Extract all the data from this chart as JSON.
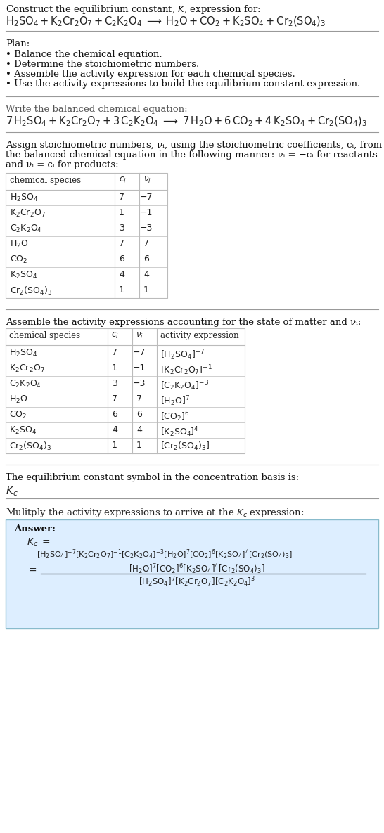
{
  "title_line1": "Construct the equilibrium constant, $K$, expression for:",
  "title_line2_plain": "H₂SO₄ + K₂Cr₂O₇ + C₂K₂O₄  ⟶  H₂O + CO₂ + K₂SO₄ + Cr₂(SO₄)₃",
  "plan_header": "Plan:",
  "plan_items": [
    "• Balance the chemical equation.",
    "• Determine the stoichiometric numbers.",
    "• Assemble the activity expression for each chemical species.",
    "• Use the activity expressions to build the equilibrium constant expression."
  ],
  "balanced_header": "Write the balanced chemical equation:",
  "stoich_intro_lines": [
    "Assign stoichiometric numbers, νᵢ, using the stoichiometric coefficients, cᵢ, from",
    "the balanced chemical equation in the following manner: νᵢ = −cᵢ for reactants",
    "and νᵢ = cᵢ for products:"
  ],
  "table1_col_headers": [
    "chemical species",
    "ci",
    "νi"
  ],
  "table1_rows": [
    [
      "H₂SO₄",
      "7",
      "−7"
    ],
    [
      "K₂Cr₂O₇",
      "1",
      "−1"
    ],
    [
      "C₂K₂O₄",
      "3",
      "−3"
    ],
    [
      "H₂O",
      "7",
      "7"
    ],
    [
      "CO₂",
      "6",
      "6"
    ],
    [
      "K₂SO₄",
      "4",
      "4"
    ],
    [
      "Cr₂(SO₄)₃",
      "1",
      "1"
    ]
  ],
  "activity_intro": "Assemble the activity expressions accounting for the state of matter and νᵢ:",
  "table2_col_headers": [
    "chemical species",
    "ci",
    "νi",
    "activity expression"
  ],
  "table2_rows": [
    [
      "H₂SO₄",
      "7",
      "−7",
      "[H₂SO₄]⁻⁷"
    ],
    [
      "K₂Cr₂O₇",
      "1",
      "−1",
      "[K₂Cr₂O₇]⁻¹"
    ],
    [
      "C₂K₂O₄",
      "3",
      "−3",
      "[C₂K₂O₄]⁻³"
    ],
    [
      "H₂O",
      "7",
      "7",
      "[H₂O]⁷"
    ],
    [
      "CO₂",
      "6",
      "6",
      "[CO₂]⁶"
    ],
    [
      "K₂SO₄",
      "4",
      "4",
      "[K₂SO₄]⁴"
    ],
    [
      "Cr₂(SO₄)₃",
      "1",
      "1",
      "[Cr₂(SO₄)₃]"
    ]
  ],
  "kc_intro": "The equilibrium constant symbol in the concentration basis is:",
  "multiply_intro": "Mulitply the activity expressions to arrive at the Kᴄ expression:",
  "bg_color": "#ffffff",
  "answer_bg": "#ddeeff",
  "text_color": "#222222",
  "grid_color": "#bbbbbb",
  "light_gray": "#999999"
}
